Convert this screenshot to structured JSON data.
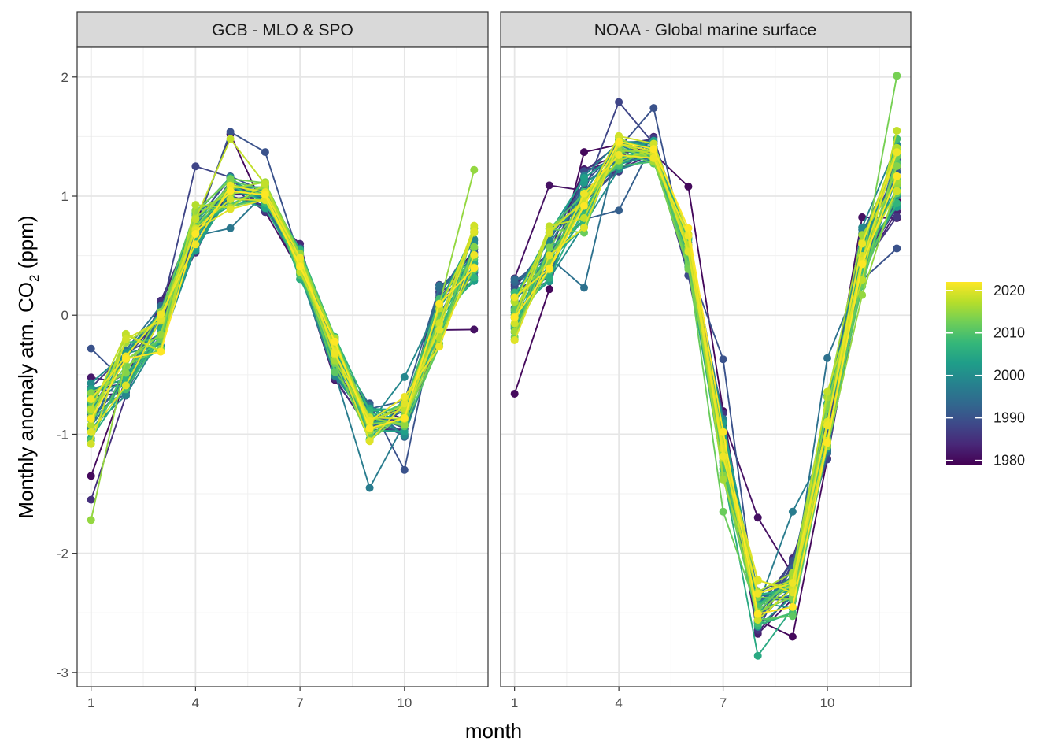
{
  "chart_data": {
    "type": "line",
    "xlabel": "month",
    "ylabel": {
      "prefix": "Monthly anomaly atm. CO",
      "subscript": "2",
      "suffix": " (ppm)"
    },
    "xlim": [
      0.6,
      12.4
    ],
    "xticks": [
      1,
      4,
      7,
      10
    ],
    "ylim": [
      -3.12,
      2.25
    ],
    "yticks": [
      -3,
      -2,
      -1,
      0,
      1,
      2
    ],
    "grid": true,
    "facets": [
      "GCB - MLO & SPO",
      "NOAA - Global marine surface"
    ],
    "color_scale": {
      "name": "viridis",
      "title": "",
      "range": [
        1979,
        2022
      ],
      "breaks": [
        1980,
        1990,
        2000,
        2010,
        2020
      ],
      "colors": [
        "#440154",
        "#482878",
        "#3e4989",
        "#31688e",
        "#26828e",
        "#1f9e89",
        "#35b779",
        "#6ece58",
        "#b5de2b",
        "#fde725"
      ]
    },
    "years": [
      1980,
      1981,
      1982,
      1983,
      1984,
      1985,
      1986,
      1987,
      1988,
      1989,
      1990,
      1991,
      1992,
      1993,
      1994,
      1995,
      1996,
      1997,
      1998,
      1999,
      2000,
      2001,
      2002,
      2003,
      2004,
      2005,
      2006,
      2007,
      2008,
      2009,
      2010,
      2011,
      2012,
      2013,
      2014,
      2015,
      2016,
      2017,
      2018,
      2019,
      2020,
      2021,
      2022
    ],
    "panels": [
      {
        "facet": "GCB - MLO & SPO",
        "mean_cycle": [
          -0.8,
          -0.45,
          -0.1,
          0.7,
          1.05,
          1.0,
          0.45,
          -0.35,
          -0.9,
          -0.85,
          0.0,
          0.5
        ],
        "year_spread": [
          0.25,
          0.25,
          0.2,
          0.22,
          0.15,
          0.12,
          0.15,
          0.18,
          0.15,
          0.18,
          0.25,
          0.25
        ],
        "spikes": [
          {
            "year": 1980,
            "month": 1,
            "value": -1.35
          },
          {
            "year": 1985,
            "month": 1,
            "value": -1.55
          },
          {
            "year": 2015,
            "month": 1,
            "value": -1.72
          },
          {
            "year": 1990,
            "month": 1,
            "value": -0.28
          },
          {
            "year": 1988,
            "month": 4,
            "value": 1.25
          },
          {
            "year": 1990,
            "month": 5,
            "value": 1.54
          },
          {
            "year": 1980,
            "month": 5,
            "value": 1.52
          },
          {
            "year": 2018,
            "month": 5,
            "value": 1.48
          },
          {
            "year": 1996,
            "month": 5,
            "value": 0.73
          },
          {
            "year": 1990,
            "month": 6,
            "value": 1.37
          },
          {
            "year": 1997,
            "month": 9,
            "value": -1.45
          },
          {
            "year": 1990,
            "month": 10,
            "value": -1.3
          },
          {
            "year": 1999,
            "month": 10,
            "value": -0.52
          },
          {
            "year": 2015,
            "month": 12,
            "value": 1.22
          },
          {
            "year": 1981,
            "month": 12,
            "value": -0.12
          }
        ]
      },
      {
        "facet": "NOAA - Global marine surface",
        "mean_cycle": [
          0.05,
          0.5,
          0.95,
          1.35,
          1.38,
          0.5,
          -1.1,
          -2.45,
          -2.3,
          -0.95,
          0.5,
          1.2
        ],
        "year_spread": [
          0.25,
          0.25,
          0.25,
          0.15,
          0.1,
          0.2,
          0.25,
          0.2,
          0.22,
          0.28,
          0.3,
          0.35
        ],
        "spikes": [
          {
            "year": 1980,
            "month": 1,
            "value": -0.66
          },
          {
            "year": 1981,
            "month": 2,
            "value": 1.09
          },
          {
            "year": 1980,
            "month": 3,
            "value": 1.37
          },
          {
            "year": 1995,
            "month": 3,
            "value": 0.23
          },
          {
            "year": 1988,
            "month": 4,
            "value": 1.79
          },
          {
            "year": 1992,
            "month": 4,
            "value": 0.88
          },
          {
            "year": 1990,
            "month": 5,
            "value": 1.74
          },
          {
            "year": 1980,
            "month": 6,
            "value": 1.08
          },
          {
            "year": 2012,
            "month": 7,
            "value": -1.65
          },
          {
            "year": 1990,
            "month": 7,
            "value": -0.37
          },
          {
            "year": 2005,
            "month": 8,
            "value": -2.86
          },
          {
            "year": 1981,
            "month": 8,
            "value": -1.7
          },
          {
            "year": 1997,
            "month": 9,
            "value": -1.65
          },
          {
            "year": 1980,
            "month": 9,
            "value": -2.7
          },
          {
            "year": 1995,
            "month": 10,
            "value": -0.36
          },
          {
            "year": 2013,
            "month": 12,
            "value": 2.01
          },
          {
            "year": 1990,
            "month": 12,
            "value": 0.56
          }
        ]
      }
    ]
  }
}
